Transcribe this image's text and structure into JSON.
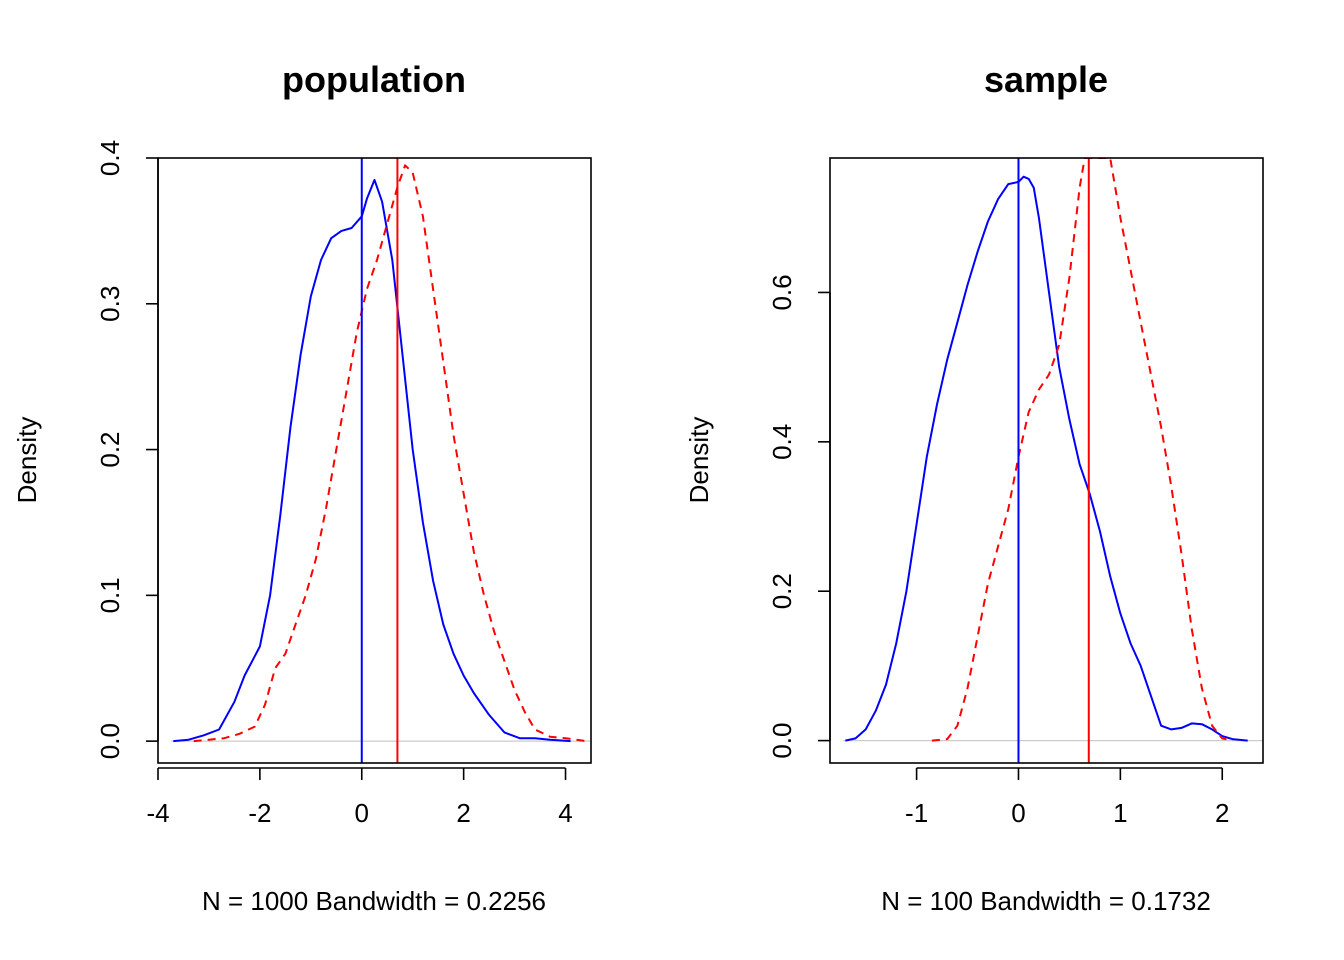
{
  "chart_data": [
    {
      "type": "line",
      "title": "population",
      "xlabel": "N = 1000   Bandwidth = 0.2256",
      "ylabel": "Density",
      "xlim": [
        -4.0,
        4.5
      ],
      "ylim": [
        -0.015,
        0.4
      ],
      "x_ticks": [
        -4,
        -2,
        0,
        2,
        4
      ],
      "x_tick_labels": [
        "-4",
        "-2",
        "0",
        "2",
        "4"
      ],
      "y_ticks": [
        0.0,
        0.1,
        0.2,
        0.3,
        0.4
      ],
      "y_tick_labels": [
        "0.0",
        "0.1",
        "0.2",
        "0.3",
        "0.4"
      ],
      "baseline": 0,
      "series": [
        {
          "color": "#0000ff",
          "dash": "solid",
          "x": [
            -3.7,
            -3.4,
            -3.1,
            -2.8,
            -2.5,
            -2.3,
            -2.0,
            -1.8,
            -1.6,
            -1.4,
            -1.2,
            -1.0,
            -0.8,
            -0.6,
            -0.4,
            -0.2,
            0.0,
            0.1,
            0.25,
            0.4,
            0.6,
            0.8,
            1.0,
            1.2,
            1.4,
            1.6,
            1.8,
            2.0,
            2.2,
            2.5,
            2.8,
            3.1,
            3.4,
            3.7,
            4.1
          ],
          "y": [
            0.0,
            0.001,
            0.004,
            0.008,
            0.027,
            0.045,
            0.065,
            0.1,
            0.155,
            0.215,
            0.265,
            0.305,
            0.33,
            0.345,
            0.35,
            0.352,
            0.36,
            0.372,
            0.385,
            0.37,
            0.33,
            0.265,
            0.2,
            0.15,
            0.11,
            0.08,
            0.06,
            0.045,
            0.033,
            0.018,
            0.006,
            0.002,
            0.002,
            0.001,
            0.0
          ]
        },
        {
          "color": "#ff0000",
          "dash": "dashed",
          "x": [
            -3.3,
            -3.0,
            -2.7,
            -2.4,
            -2.1,
            -1.9,
            -1.7,
            -1.5,
            -1.3,
            -1.1,
            -0.9,
            -0.7,
            -0.5,
            -0.3,
            -0.1,
            0.1,
            0.3,
            0.5,
            0.7,
            0.85,
            1.0,
            1.2,
            1.4,
            1.6,
            1.8,
            2.0,
            2.2,
            2.4,
            2.6,
            2.8,
            3.0,
            3.2,
            3.4,
            3.7,
            4.0,
            4.4
          ],
          "y": [
            0.0,
            0.001,
            0.002,
            0.005,
            0.01,
            0.025,
            0.05,
            0.06,
            0.08,
            0.1,
            0.125,
            0.16,
            0.2,
            0.24,
            0.28,
            0.31,
            0.33,
            0.355,
            0.38,
            0.395,
            0.39,
            0.36,
            0.31,
            0.26,
            0.21,
            0.17,
            0.13,
            0.1,
            0.075,
            0.055,
            0.035,
            0.02,
            0.008,
            0.003,
            0.002,
            0.0
          ]
        }
      ],
      "vlines": [
        {
          "x": 0.0,
          "color": "#0000ff"
        },
        {
          "x": 0.7,
          "color": "#ff0000"
        }
      ]
    },
    {
      "type": "line",
      "title": "sample",
      "xlabel": "N = 100   Bandwidth = 0.1732",
      "ylabel": "Density",
      "xlim": [
        -1.85,
        2.4
      ],
      "ylim": [
        -0.03,
        0.78
      ],
      "x_ticks": [
        -1,
        0,
        1,
        2
      ],
      "x_tick_labels": [
        "-1",
        "0",
        "1",
        "2"
      ],
      "y_ticks": [
        0.0,
        0.2,
        0.4,
        0.6
      ],
      "y_tick_labels": [
        "0.0",
        "0.2",
        "0.4",
        "0.6"
      ],
      "baseline": 0,
      "series": [
        {
          "color": "#0000ff",
          "dash": "solid",
          "x": [
            -1.7,
            -1.6,
            -1.5,
            -1.4,
            -1.3,
            -1.2,
            -1.1,
            -1.0,
            -0.9,
            -0.8,
            -0.7,
            -0.6,
            -0.5,
            -0.4,
            -0.3,
            -0.2,
            -0.1,
            0.0,
            0.05,
            0.1,
            0.15,
            0.2,
            0.3,
            0.4,
            0.5,
            0.6,
            0.7,
            0.8,
            0.9,
            1.0,
            1.1,
            1.2,
            1.3,
            1.4,
            1.5,
            1.6,
            1.7,
            1.8,
            1.9,
            2.0,
            2.1,
            2.25
          ],
          "y": [
            0.0,
            0.003,
            0.015,
            0.04,
            0.075,
            0.13,
            0.2,
            0.29,
            0.38,
            0.45,
            0.51,
            0.56,
            0.61,
            0.655,
            0.695,
            0.725,
            0.745,
            0.748,
            0.755,
            0.752,
            0.74,
            0.7,
            0.6,
            0.5,
            0.43,
            0.37,
            0.33,
            0.28,
            0.22,
            0.17,
            0.13,
            0.1,
            0.06,
            0.02,
            0.015,
            0.017,
            0.023,
            0.022,
            0.015,
            0.006,
            0.002,
            0.0
          ]
        },
        {
          "color": "#ff0000",
          "dash": "dashed",
          "x": [
            -0.85,
            -0.7,
            -0.6,
            -0.5,
            -0.4,
            -0.3,
            -0.2,
            -0.1,
            0.0,
            0.1,
            0.2,
            0.3,
            0.4,
            0.5,
            0.6,
            0.65,
            0.7,
            0.9,
            1.0,
            1.1,
            1.2,
            1.3,
            1.4,
            1.5,
            1.6,
            1.7,
            1.8,
            1.9,
            2.0,
            2.1
          ],
          "y": [
            0.0,
            0.002,
            0.02,
            0.07,
            0.14,
            0.21,
            0.26,
            0.31,
            0.38,
            0.44,
            0.47,
            0.49,
            0.53,
            0.62,
            0.74,
            0.78,
            0.78,
            0.78,
            0.7,
            0.63,
            0.56,
            0.49,
            0.42,
            0.34,
            0.25,
            0.15,
            0.07,
            0.02,
            0.003,
            0.0
          ]
        }
      ],
      "vlines": [
        {
          "x": 0.0,
          "color": "#0000ff"
        },
        {
          "x": 0.69,
          "color": "#ff0000"
        }
      ]
    }
  ]
}
